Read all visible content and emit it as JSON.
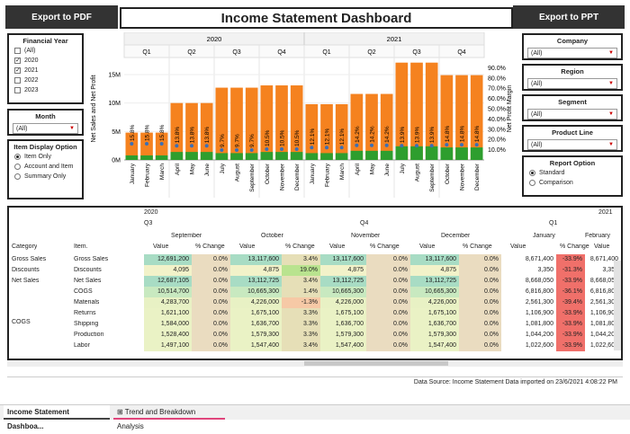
{
  "header": {
    "export_pdf": "Export to PDF",
    "title": "Income Statement Dashboard",
    "export_ppt": "Export to PPT"
  },
  "filters_left": {
    "fy_title": "Financial Year",
    "fy_options": [
      {
        "label": "(All)",
        "checked": false
      },
      {
        "label": "2020",
        "checked": true
      },
      {
        "label": "2021",
        "checked": true
      },
      {
        "label": "2022",
        "checked": false
      },
      {
        "label": "2023",
        "checked": false
      }
    ],
    "month_title": "Month",
    "month_value": "(All)",
    "display_title": "Item Display Option",
    "display_options": [
      {
        "label": "Item Only",
        "selected": true
      },
      {
        "label": "Account and Item",
        "selected": false
      },
      {
        "label": "Summary Only",
        "selected": false
      }
    ]
  },
  "filters_right": {
    "company_title": "Company",
    "company_value": "(All)",
    "region_title": "Region",
    "region_value": "(All)",
    "segment_title": "Segment",
    "segment_value": "(All)",
    "product_title": "Product Line",
    "product_value": "(All)",
    "report_title": "Report Option",
    "report_options": [
      {
        "label": "Standard",
        "selected": true
      },
      {
        "label": "Comparison",
        "selected": false
      }
    ]
  },
  "chart_data": {
    "type": "bar",
    "years": [
      "2020",
      "2021"
    ],
    "quarters": [
      "Q1",
      "Q2",
      "Q3",
      "Q4",
      "Q1",
      "Q2",
      "Q3",
      "Q4"
    ],
    "categories": [
      "January",
      "February",
      "March",
      "April",
      "May",
      "June",
      "July",
      "August",
      "September",
      "October",
      "November",
      "December",
      "January",
      "February",
      "March",
      "April",
      "May",
      "June",
      "July",
      "August",
      "September",
      "October",
      "November",
      "December"
    ],
    "series": [
      {
        "name": "Net Sales",
        "color": "#f5821f",
        "values": [
          4.8,
          4.8,
          4.8,
          10.0,
          10.0,
          10.0,
          12.7,
          12.7,
          12.7,
          13.1,
          13.1,
          13.1,
          9.8,
          9.8,
          9.8,
          11.6,
          11.6,
          11.6,
          17.1,
          17.1,
          17.1,
          14.9,
          14.9,
          14.9
        ]
      },
      {
        "name": "Net Profit",
        "color": "#2e9e2e",
        "values": [
          0.8,
          0.8,
          0.8,
          1.4,
          1.4,
          1.4,
          1.2,
          1.2,
          1.2,
          1.4,
          1.4,
          1.4,
          1.2,
          1.2,
          1.2,
          1.6,
          1.6,
          1.6,
          2.4,
          2.4,
          2.4,
          2.2,
          2.2,
          2.2
        ]
      }
    ],
    "margin_values": [
      15.8,
      15.8,
      15.8,
      13.8,
      13.8,
      13.8,
      9.7,
      9.7,
      9.7,
      10.5,
      10.5,
      10.5,
      12.1,
      12.1,
      12.1,
      14.2,
      14.2,
      14.2,
      13.9,
      13.9,
      13.9,
      14.8,
      14.8,
      14.8
    ],
    "margin_labels": [
      "15.8%",
      "15.8%",
      "15.8%",
      "13.8%",
      "13.8%",
      "13.8%",
      "9.7%",
      "9.7%",
      "9.7%",
      "10.5%",
      "10.5%",
      "10.5%",
      "12.1%",
      "12.1%",
      "12.1%",
      "14.2%",
      "14.2%",
      "14.2%",
      "13.9%",
      "13.9%",
      "13.9%",
      "14.8%",
      "14.8%",
      "14.8%"
    ],
    "ylabel": "Net Sales and Net Profit",
    "y2label": "Net Profit Margin",
    "yticks": [
      "0M",
      "5M",
      "10M",
      "15M"
    ],
    "y2ticks": [
      "10.0%",
      "20.0%",
      "30.0%",
      "40.0%",
      "50.0%",
      "60.0%",
      "70.0%",
      "80.0%",
      "90.0%"
    ],
    "ylim": [
      0,
      18
    ],
    "y2lim": [
      0,
      100
    ]
  },
  "table": {
    "year_2020": "2020",
    "year_2021": "2021",
    "q3": "Q3",
    "q4": "Q4",
    "q1": "Q1",
    "months": [
      "September",
      "October",
      "November",
      "December",
      "January",
      "February"
    ],
    "col_value": "Value",
    "col_change": "% Change",
    "h_category": "Category",
    "h_item": "Item.",
    "rows": [
      {
        "cat": "Gross Sales",
        "item": "Gross Sales",
        "vals": [
          "12,691,200",
          "0.0%",
          "13,117,600",
          "3.4%",
          "13,117,600",
          "0.0%",
          "13,117,600",
          "0.0%",
          "8,671,400",
          "-33.9%",
          "8,671,400"
        ]
      },
      {
        "cat": "Discounts",
        "item": "Discounts",
        "vals": [
          "4,095",
          "0.0%",
          "4,875",
          "19.0%",
          "4,875",
          "0.0%",
          "4,875",
          "0.0%",
          "3,350",
          "-31.3%",
          "3,350"
        ]
      },
      {
        "cat": "Net Sales",
        "item": "Net Sales",
        "vals": [
          "12,687,105",
          "0.0%",
          "13,112,725",
          "3.4%",
          "13,112,725",
          "0.0%",
          "13,112,725",
          "0.0%",
          "8,668,050",
          "-33.9%",
          "8,668,050"
        ]
      },
      {
        "cat": "",
        "item": "COGS",
        "vals": [
          "10,514,700",
          "0.0%",
          "10,665,300",
          "1.4%",
          "10,665,300",
          "0.0%",
          "10,665,300",
          "0.0%",
          "6,816,800",
          "-36.1%",
          "6,816,800"
        ]
      },
      {
        "cat": "",
        "item": "Materials",
        "vals": [
          "4,283,700",
          "0.0%",
          "4,226,000",
          "-1.3%",
          "4,226,000",
          "0.0%",
          "4,226,000",
          "0.0%",
          "2,561,300",
          "-39.4%",
          "2,561,300"
        ]
      },
      {
        "cat": "",
        "item": "Returns",
        "vals": [
          "1,621,100",
          "0.0%",
          "1,675,100",
          "3.3%",
          "1,675,100",
          "0.0%",
          "1,675,100",
          "0.0%",
          "1,106,900",
          "-33.9%",
          "1,106,900"
        ]
      },
      {
        "cat": "",
        "item": "Shipping",
        "vals": [
          "1,584,000",
          "0.0%",
          "1,636,700",
          "3.3%",
          "1,636,700",
          "0.0%",
          "1,636,700",
          "0.0%",
          "1,081,800",
          "-33.9%",
          "1,081,800"
        ]
      },
      {
        "cat": "",
        "item": "Production",
        "vals": [
          "1,528,400",
          "0.0%",
          "1,579,300",
          "3.3%",
          "1,579,300",
          "0.0%",
          "1,579,300",
          "0.0%",
          "1,044,200",
          "-33.9%",
          "1,044,200"
        ]
      },
      {
        "cat": "",
        "item": "Labor",
        "vals": [
          "1,497,100",
          "0.0%",
          "1,547,400",
          "3.4%",
          "1,547,400",
          "0.0%",
          "1,547,400",
          "0.0%",
          "1,022,600",
          "-33.9%",
          "1,022,600"
        ]
      }
    ],
    "cogs_label": "COGS"
  },
  "status": {
    "text": "Data Source: Income Statement Data imported on 23/6/2021 4:08:22 PM"
  },
  "tabs": [
    "Income Statement Dashboa...",
    "Trend and Breakdown Analysis"
  ]
}
